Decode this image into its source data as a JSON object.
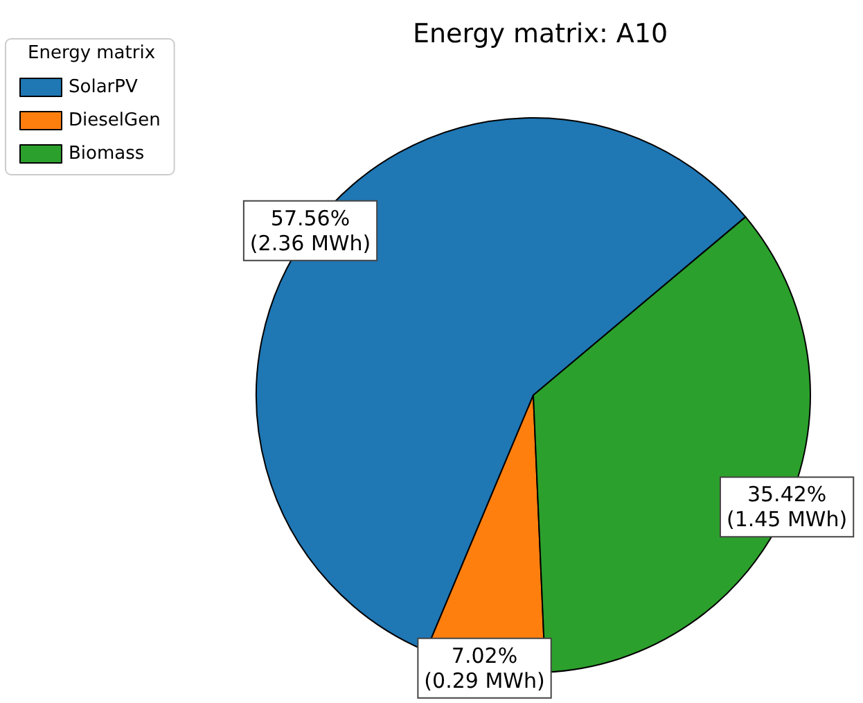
{
  "chart_data": {
    "type": "pie",
    "title": "Energy matrix: A10",
    "legend_title": "Energy matrix",
    "categories": [
      "SolarPV",
      "DieselGen",
      "Biomass"
    ],
    "values": [
      57.56,
      7.02,
      35.42
    ],
    "colors": [
      "#1f77b4",
      "#ff7f0e",
      "#2ca02c"
    ],
    "value_labels": [
      "57.56%\n(2.36 MWh)",
      "7.02%\n(0.29 MWh)",
      "35.42%\n(1.45 MWh)"
    ],
    "legend": "top left"
  }
}
